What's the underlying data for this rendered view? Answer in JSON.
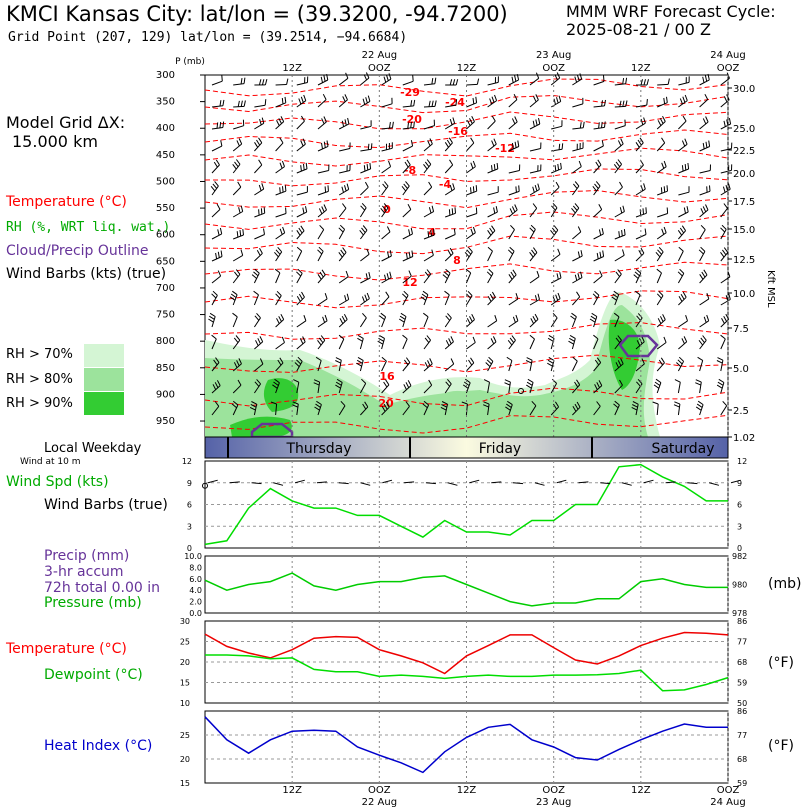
{
  "header": {
    "title": "KMCI Kansas City:  lat/lon = (39.3200, -94.7200)",
    "subtitle": "Grid Point (207, 129) lat/lon = (39.2514, −94.6684)",
    "cycle_title": "MMM WRF Forecast Cycle:",
    "cycle_value": "2025-08-21 / 00  Z"
  },
  "left_panel": {
    "grid_dx_label": "Model Grid ΔX:",
    "grid_dx_value": "15.000 km",
    "legend": {
      "temperature": "Temperature (°C)",
      "rh": "RH (%, WRT liq. wat.)",
      "cloud": "Cloud/Precip Outline",
      "wind": "Wind Barbs (kts) (true)"
    },
    "rh_levels": [
      {
        "label": "RH > 70%",
        "color": "#d4f5d4"
      },
      {
        "label": "RH > 80%",
        "color": "#9ce39c"
      },
      {
        "label": "RH > 90%",
        "color": "#33cc33"
      }
    ]
  },
  "time_axis": {
    "top_dates": [
      "22 Aug",
      "23 Aug",
      "24 Aug"
    ],
    "ticks": [
      "12Z",
      "OOZ",
      "12Z",
      "OOZ",
      "12Z",
      "OOZ"
    ],
    "bottom_ticks": [
      "12Z",
      "OOZ",
      "12Z",
      "OOZ",
      "12Z",
      "OOZ"
    ],
    "bottom_dates": [
      "22 Aug",
      "23 Aug",
      "24 Aug"
    ],
    "weekdays": [
      "Thursday",
      "Friday",
      "Saturday"
    ]
  },
  "colors": {
    "temperature": "#ff0000",
    "rh": "#00cc00",
    "cloud": "#663399",
    "heat_index": "#0000cc",
    "weekday_dark": "#5562a8",
    "weekday_light": "#fbfbe0"
  },
  "chart_data": [
    {
      "type": "heatmap",
      "name": "time-height cross section",
      "y_axis_label": "P (mb)",
      "y_ticks": [
        300,
        350,
        400,
        450,
        500,
        550,
        600,
        650,
        700,
        750,
        800,
        850,
        900,
        950
      ],
      "right_axis_label": "Kft MSL",
      "right_ticks": [
        "30.0",
        "25.0",
        "22.5",
        "20.0",
        "17.5",
        "15.0",
        "12.5",
        "10.0",
        "7.5",
        "5.0",
        "2.5",
        "1.02"
      ],
      "temperature_labels": [
        "-29",
        "-24",
        "-20",
        "-16",
        "-12",
        "-8",
        "-4",
        "0",
        "4",
        "8",
        "12",
        "16",
        "20"
      ]
    },
    {
      "type": "line",
      "name": "10 m wind",
      "row_header": "Local Weekday",
      "row_subheader": "Wind at 10 m",
      "labels": [
        "Wind Spd (kts)",
        "Wind Barbs (true)"
      ],
      "y_ticks": [
        0,
        3,
        6,
        9,
        12
      ],
      "y_range": [
        0,
        12
      ],
      "x": [
        0,
        3,
        6,
        9,
        12,
        15,
        18,
        21,
        24,
        27,
        30,
        33,
        36,
        39,
        42,
        45,
        48,
        51,
        54,
        57,
        60,
        63,
        66,
        69,
        72
      ],
      "wind_speed": [
        0.5,
        1.0,
        5.5,
        8.2,
        6.5,
        5.5,
        5.5,
        4.5,
        4.5,
        3.0,
        1.5,
        3.8,
        2.2,
        2.2,
        1.8,
        3.8,
        3.8,
        6.0,
        6.0,
        11.2,
        11.5,
        9.8,
        8.5,
        6.5,
        6.5
      ]
    },
    {
      "type": "line",
      "name": "precip and pressure",
      "labels": [
        "Precip (mm)",
        "3-hr accum",
        "72h total 0.00 in",
        "Pressure (mb)"
      ],
      "unit_label": "(mb)",
      "left_ticks": [
        "0.0",
        "2.0",
        "4.0",
        "6.0",
        "8.0",
        "10.0"
      ],
      "right_ticks": [
        978,
        980,
        982
      ],
      "y_range": [
        978,
        982
      ],
      "x": [
        0,
        3,
        6,
        9,
        12,
        15,
        18,
        21,
        24,
        27,
        30,
        33,
        36,
        39,
        42,
        45,
        48,
        51,
        54,
        57,
        60,
        63,
        66,
        69,
        72
      ],
      "pressure": [
        980.3,
        979.6,
        980.0,
        980.2,
        980.8,
        979.9,
        979.6,
        980.0,
        980.2,
        980.2,
        980.5,
        980.6,
        980.0,
        979.4,
        978.8,
        978.5,
        978.7,
        978.7,
        979.0,
        979.0,
        980.2,
        980.4,
        980.0,
        979.8,
        979.8
      ]
    },
    {
      "type": "line",
      "name": "temperature and dewpoint",
      "labels": [
        "Temperature (°C)",
        "Dewpoint (°C)"
      ],
      "unit_label": "(°F)",
      "left_ticks": [
        10,
        15,
        20,
        25,
        30
      ],
      "right_ticks": [
        50,
        59,
        68,
        77,
        86
      ],
      "y_range": [
        10,
        30
      ],
      "x": [
        0,
        3,
        6,
        9,
        12,
        15,
        18,
        21,
        24,
        27,
        30,
        33,
        36,
        39,
        42,
        45,
        48,
        51,
        54,
        57,
        60,
        63,
        66,
        69,
        72
      ],
      "series": [
        {
          "name": "Temperature",
          "values": [
            26.8,
            23.8,
            22.2,
            21.0,
            23.0,
            25.8,
            26.2,
            26.0,
            23.0,
            21.5,
            19.8,
            17.2,
            21.5,
            24.0,
            26.6,
            26.6,
            23.5,
            20.5,
            19.5,
            21.5,
            24.0,
            25.8,
            27.2,
            27.0,
            26.6
          ]
        },
        {
          "name": "Dewpoint",
          "values": [
            21.7,
            21.7,
            21.5,
            20.8,
            21.0,
            18.2,
            17.6,
            17.6,
            16.5,
            16.8,
            16.5,
            16.0,
            16.5,
            16.8,
            16.5,
            16.5,
            16.8,
            16.8,
            16.9,
            17.2,
            18.0,
            13.0,
            13.2,
            14.5,
            16.2
          ]
        }
      ]
    },
    {
      "type": "line",
      "name": "heat index",
      "labels": [
        "Heat Index (°C)"
      ],
      "unit_label": "(°F)",
      "left_ticks": [
        15,
        20,
        25
      ],
      "right_ticks": [
        59,
        68,
        77,
        86
      ],
      "y_range": [
        15,
        30
      ],
      "x": [
        0,
        3,
        6,
        9,
        12,
        15,
        18,
        21,
        24,
        27,
        30,
        33,
        36,
        39,
        42,
        45,
        48,
        51,
        54,
        57,
        60,
        63,
        66,
        69,
        72
      ],
      "heat_index": [
        28.8,
        24.0,
        21.2,
        24.0,
        25.8,
        26.0,
        25.8,
        22.5,
        20.8,
        19.2,
        17.2,
        21.5,
        24.5,
        26.6,
        27.2,
        24.0,
        22.5,
        20.3,
        19.8,
        22.0,
        24.0,
        25.8,
        27.3,
        26.6,
        26.6
      ]
    }
  ]
}
